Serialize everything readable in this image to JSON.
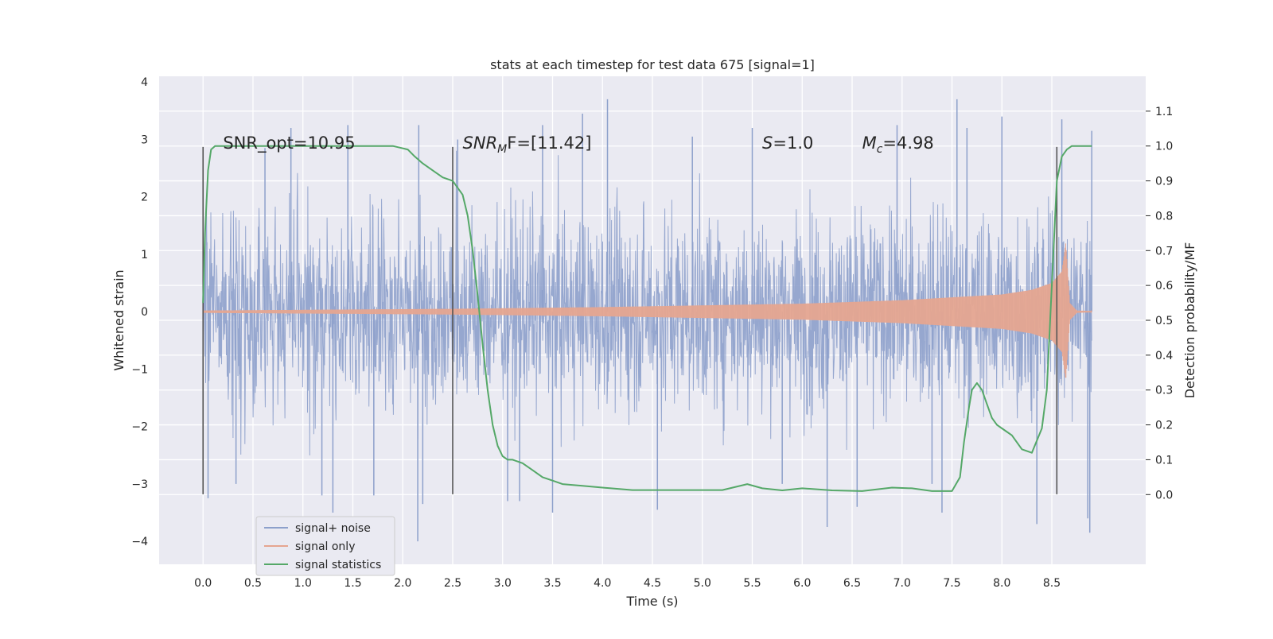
{
  "chart_data": {
    "type": "line",
    "title": "stats at each timestep for test data 675 [signal=1]",
    "xlabel": "Time (s)",
    "ylabel": "Whitened strain",
    "y2label": "Detection probability/MF",
    "xlim": [
      -0.44,
      9.44
    ],
    "ylim": [
      -4.4,
      4.1
    ],
    "y2lim": [
      -0.2,
      1.2
    ],
    "x_ticks": [
      0.0,
      0.5,
      1.0,
      1.5,
      2.0,
      2.5,
      3.0,
      3.5,
      4.0,
      4.5,
      5.0,
      5.5,
      6.0,
      6.5,
      7.0,
      7.5,
      8.0,
      8.5
    ],
    "y_ticks": [
      4,
      3,
      2,
      1,
      0,
      -1,
      -2,
      -3,
      -4
    ],
    "y_tick_labels": [
      "4",
      "3",
      "2",
      "1",
      "0",
      "−1",
      "−2",
      "−3",
      "−4"
    ],
    "y2_ticks": [
      1.1,
      1.0,
      0.9,
      0.8,
      0.7,
      0.6,
      0.5,
      0.4,
      0.3,
      0.2,
      0.1,
      0.0
    ],
    "grid": true,
    "legend_position": "bottom-left",
    "annotations": [
      {
        "text": "SNR_opt=10.95",
        "x": 0.2,
        "y": 2.95
      },
      {
        "base": "SNR",
        "sub": "M",
        "rest": "F=[11.42]",
        "x": 2.6,
        "y": 2.95
      },
      {
        "base": "S",
        "rest": "=1.0",
        "x": 5.6,
        "y": 2.95
      },
      {
        "base": "M",
        "sub": "c",
        "rest": "=4.98",
        "x": 6.6,
        "y": 2.95
      }
    ],
    "vertical_markers": {
      "x": [
        0.0,
        2.5,
        8.55
      ],
      "y_range": [
        -3.18,
        2.87
      ],
      "color": "#555555"
    },
    "series": [
      {
        "name": "signal+ noise",
        "color": "#8da0cb",
        "axis": "left",
        "t_range": [
          0.0,
          8.9
        ],
        "band_std": 0.85,
        "outliers": [
          {
            "x": 0.05,
            "y": -3.25
          },
          {
            "x": 0.33,
            "y": -3.0
          },
          {
            "x": 0.62,
            "y": 2.85
          },
          {
            "x": 0.88,
            "y": 3.2
          },
          {
            "x": 1.19,
            "y": -3.2
          },
          {
            "x": 1.3,
            "y": -3.5
          },
          {
            "x": 1.45,
            "y": 3.25
          },
          {
            "x": 1.71,
            "y": -3.2
          },
          {
            "x": 2.16,
            "y": 3.25
          },
          {
            "x": 2.2,
            "y": -3.35
          },
          {
            "x": 2.15,
            "y": -4.0
          },
          {
            "x": 2.55,
            "y": 3.0
          },
          {
            "x": 3.05,
            "y": -3.3
          },
          {
            "x": 3.17,
            "y": -3.3
          },
          {
            "x": 3.4,
            "y": 3.25
          },
          {
            "x": 3.5,
            "y": -3.5
          },
          {
            "x": 3.8,
            "y": 3.45
          },
          {
            "x": 4.05,
            "y": 3.7
          },
          {
            "x": 4.55,
            "y": -3.45
          },
          {
            "x": 4.9,
            "y": 3.05
          },
          {
            "x": 5.5,
            "y": 3.2
          },
          {
            "x": 5.8,
            "y": -3.0
          },
          {
            "x": 6.25,
            "y": -3.75
          },
          {
            "x": 6.55,
            "y": -3.4
          },
          {
            "x": 6.95,
            "y": 3.25
          },
          {
            "x": 7.3,
            "y": -3.0
          },
          {
            "x": 7.4,
            "y": -3.5
          },
          {
            "x": 7.55,
            "y": 3.7
          },
          {
            "x": 7.65,
            "y": 3.2
          },
          {
            "x": 8.0,
            "y": 3.4
          },
          {
            "x": 8.35,
            "y": -3.7
          },
          {
            "x": 8.6,
            "y": 3.35
          },
          {
            "x": 8.86,
            "y": -3.6
          },
          {
            "x": 8.88,
            "y": -3.85
          },
          {
            "x": 8.9,
            "y": 3.15
          }
        ]
      },
      {
        "name": "signal only",
        "color": "#e5a590",
        "axis": "left",
        "t_range": [
          0.0,
          8.9
        ],
        "envelope": [
          {
            "x": 0.0,
            "y": 0.02
          },
          {
            "x": 2.5,
            "y": 0.05
          },
          {
            "x": 4.0,
            "y": 0.08
          },
          {
            "x": 6.0,
            "y": 0.14
          },
          {
            "x": 7.0,
            "y": 0.2
          },
          {
            "x": 7.5,
            "y": 0.25
          },
          {
            "x": 8.0,
            "y": 0.3
          },
          {
            "x": 8.3,
            "y": 0.38
          },
          {
            "x": 8.5,
            "y": 0.5
          },
          {
            "x": 8.6,
            "y": 0.7
          },
          {
            "x": 8.64,
            "y": 1.2
          },
          {
            "x": 8.68,
            "y": 0.15
          },
          {
            "x": 8.75,
            "y": 0.02
          },
          {
            "x": 8.9,
            "y": 0.01
          }
        ]
      },
      {
        "name": "signal statistics",
        "color": "#55a868",
        "axis": "right",
        "x": [
          0.0,
          0.02,
          0.05,
          0.08,
          0.12,
          0.2,
          0.3,
          0.5,
          0.8,
          1.2,
          1.6,
          1.9,
          2.05,
          2.12,
          2.2,
          2.3,
          2.4,
          2.5,
          2.6,
          2.65,
          2.7,
          2.75,
          2.8,
          2.85,
          2.9,
          2.95,
          3.0,
          3.05,
          3.1,
          3.2,
          3.3,
          3.4,
          3.5,
          3.6,
          3.8,
          4.0,
          4.3,
          4.6,
          4.9,
          5.2,
          5.45,
          5.6,
          5.8,
          6.0,
          6.3,
          6.6,
          6.9,
          7.1,
          7.3,
          7.5,
          7.58,
          7.62,
          7.67,
          7.7,
          7.75,
          7.8,
          7.85,
          7.9,
          7.95,
          8.0,
          8.1,
          8.2,
          8.3,
          8.4,
          8.45,
          8.5,
          8.55,
          8.6,
          8.65,
          8.7,
          8.9
        ],
        "y": [
          0.55,
          0.75,
          0.93,
          0.99,
          1.0,
          1.0,
          1.0,
          1.0,
          1.0,
          1.0,
          1.0,
          1.0,
          0.99,
          0.97,
          0.95,
          0.93,
          0.91,
          0.9,
          0.86,
          0.8,
          0.7,
          0.57,
          0.43,
          0.3,
          0.2,
          0.14,
          0.11,
          0.1,
          0.1,
          0.09,
          0.07,
          0.05,
          0.04,
          0.03,
          0.025,
          0.02,
          0.013,
          0.013,
          0.013,
          0.013,
          0.03,
          0.018,
          0.012,
          0.018,
          0.012,
          0.01,
          0.02,
          0.018,
          0.01,
          0.01,
          0.05,
          0.15,
          0.25,
          0.3,
          0.32,
          0.3,
          0.26,
          0.22,
          0.2,
          0.19,
          0.17,
          0.13,
          0.12,
          0.19,
          0.3,
          0.6,
          0.9,
          0.97,
          0.99,
          1.0,
          1.0
        ]
      }
    ]
  }
}
